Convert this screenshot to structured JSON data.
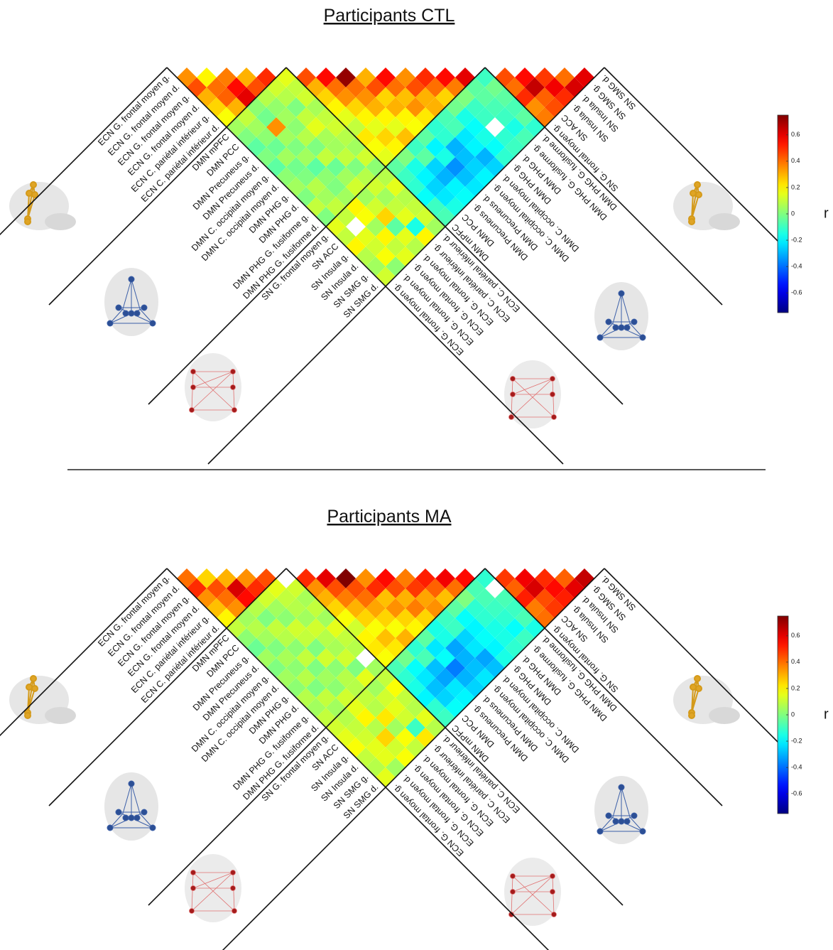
{
  "chart_data": [
    {
      "type": "heatmap",
      "title": "Participants CTL",
      "labels": [
        "ECN G. frontal moyen g.",
        "ECN G. frontal moyen d.",
        "ECN G. frontal moyen g.",
        "ECN G. frontal moyen d.",
        "ECN C. pariétal inférieur g.",
        "ECN C. pariétal inférieur d.",
        "DMN mPFC",
        "DMN PCC",
        "DMN Precuneus g.",
        "DMN Precuneus d.",
        "DMN C. occipital moyen g.",
        "DMN C. occipital moyen d.",
        "DMN PHG g.",
        "DMN PHG d.",
        "DMN PHG G. fusiforme g.",
        "DMN PHG G. fusiforme d.",
        "SN G. frontal moyen g.",
        "SN ACC",
        "SN Insula g.",
        "SN Insula d.",
        "SN SMG g.",
        "SN SMG d."
      ],
      "values": [
        [
          0.35
        ],
        [
          0.45,
          0.2
        ],
        [
          0.3,
          0.4,
          0.38
        ],
        [
          0.25,
          0.42,
          0.55,
          0.3
        ],
        [
          0.18,
          0.3,
          0.6,
          0.45,
          0.5
        ],
        [
          0.05,
          0.1,
          0.02,
          0.08,
          0.12,
          0.15
        ],
        [
          0.0,
          0.05,
          -0.02,
          0.03,
          0.08,
          0.1,
          0.45
        ],
        [
          -0.05,
          0.02,
          0.35,
          0.05,
          0.0,
          0.12,
          0.3,
          0.55
        ],
        [
          0.0,
          -0.03,
          0.05,
          0.02,
          0.1,
          0.06,
          0.25,
          0.4,
          0.72
        ],
        [
          -0.05,
          0.05,
          0.0,
          0.08,
          0.15,
          0.1,
          0.2,
          0.35,
          0.4,
          0.3
        ],
        [
          0.02,
          -0.02,
          0.05,
          0.0,
          0.06,
          0.12,
          0.15,
          0.25,
          0.35,
          0.45,
          0.55
        ],
        [
          0.05,
          0.0,
          -0.05,
          0.1,
          0.05,
          0.08,
          0.1,
          0.2,
          0.3,
          0.25,
          0.4,
          0.35
        ],
        [
          0.0,
          0.08,
          0.02,
          -0.03,
          0.1,
          0.05,
          0.22,
          0.15,
          0.2,
          0.3,
          0.28,
          0.45,
          0.5
        ],
        [
          0.1,
          0.05,
          0.0,
          0.05,
          0.0,
          0.12,
          0.18,
          0.25,
          0.15,
          0.2,
          0.35,
          0.3,
          0.4,
          0.55
        ],
        [
          0.0,
          0.1,
          0.05,
          0.12,
          0.08,
          0.02,
          0.15,
          0.2,
          0.28,
          0.18,
          0.22,
          0.3,
          0.25,
          0.38,
          0.6
        ],
        [
          0.15,
          0.1,
          0.2,
          0.05,
          0.12,
          0.08,
          -0.05,
          0.0,
          -0.1,
          -0.05,
          -0.12,
          -0.08,
          -0.02,
          0.0,
          -0.05,
          -0.1
        ],
        [
          0.1,
          null,
          0.18,
          0.12,
          0.05,
          0.15,
          -0.1,
          -0.15,
          -0.05,
          -0.2,
          -0.12,
          -0.08,
          -0.15,
          -0.1,
          -0.05,
          -0.02,
          0.45
        ],
        [
          0.2,
          0.15,
          0.05,
          0.25,
          0.1,
          0.08,
          -0.12,
          -0.2,
          -0.25,
          -0.15,
          -0.3,
          -0.22,
          -0.18,
          -0.1,
          -0.08,
          -0.05,
          0.4,
          0.55
        ],
        [
          0.08,
          0.12,
          0.2,
          -0.05,
          0.15,
          0.1,
          -0.18,
          -0.25,
          -0.3,
          -0.35,
          -0.28,
          -0.2,
          -0.15,
          null,
          -0.1,
          -0.08,
          0.5,
          0.65,
          0.48
        ],
        [
          0.05,
          0.18,
          0.1,
          0.15,
          -0.15,
          0.12,
          -0.1,
          -0.22,
          -0.2,
          -0.28,
          -0.25,
          -0.3,
          -0.18,
          -0.12,
          -0.15,
          -0.05,
          0.35,
          0.42,
          0.58,
          0.4
        ],
        [
          0.12,
          0.02,
          0.15,
          0.08,
          0.2,
          0.05,
          -0.08,
          -0.15,
          -0.18,
          -0.22,
          -0.2,
          -0.25,
          -0.12,
          -0.1,
          -0.08,
          -0.12,
          0.38,
          0.45,
          0.5,
          0.62,
          0.6
        ]
      ],
      "colorbar": {
        "lim": [
          -0.75,
          0.75
        ],
        "ticks": [
          0.6,
          0.4,
          0.2,
          0,
          -0.2,
          -0.4,
          -0.6
        ],
        "label": "r"
      }
    },
    {
      "type": "heatmap",
      "title": "Participants MA",
      "labels": [
        "ECN G. frontal moyen g.",
        "ECN G. frontal moyen d.",
        "ECN G. frontal moyen g.",
        "ECN G. frontal moyen d.",
        "ECN C. pariétal inférieur g.",
        "ECN C. pariétal inférieur d.",
        "DMN mPFC",
        "DMN PCC",
        "DMN Precuneus g.",
        "DMN Precuneus d.",
        "DMN C. occipital moyen g.",
        "DMN C. occipital moyen d.",
        "DMN PHG g.",
        "DMN PHG d.",
        "DMN PHG G. fusiforme g.",
        "DMN PHG G. fusiforme d.",
        "SN G. frontal moyen g.",
        "SN ACC",
        "SN Insula g.",
        "SN Insula d.",
        "SN SMG g.",
        "SN SMG d."
      ],
      "values": [
        [
          0.4
        ],
        [
          0.5,
          0.25
        ],
        [
          0.35,
          0.45,
          0.3
        ],
        [
          0.28,
          0.4,
          0.62,
          0.35
        ],
        [
          0.2,
          0.35,
          0.55,
          0.5,
          0.45
        ],
        [
          0.1,
          0.05,
          0.08,
          0.12,
          0.15,
          null
        ],
        [
          0.02,
          0.08,
          0.0,
          0.05,
          0.1,
          0.12,
          0.5
        ],
        [
          -0.03,
          0.05,
          0.1,
          0.02,
          0.08,
          0.06,
          0.35,
          0.6
        ],
        [
          0.05,
          0.0,
          0.08,
          0.12,
          0.05,
          0.1,
          0.3,
          0.45,
          0.75
        ],
        [
          0.0,
          0.06,
          0.02,
          0.1,
          0.12,
          0.05,
          0.25,
          0.38,
          0.45,
          0.35
        ],
        [
          0.05,
          0.02,
          0.1,
          0.0,
          0.08,
          0.15,
          0.18,
          0.3,
          0.4,
          0.5,
          0.55
        ],
        [
          0.02,
          0.08,
          0.0,
          0.12,
          0.06,
          0.1,
          0.12,
          0.25,
          0.32,
          0.28,
          0.45,
          0.38
        ],
        [
          0.08,
          0.0,
          0.05,
          0.02,
          0.12,
          0.08,
          0.2,
          0.18,
          0.25,
          0.35,
          0.3,
          0.48,
          0.52
        ],
        [
          0.05,
          0.1,
          0.02,
          0.08,
          0.0,
          null,
          0.22,
          0.28,
          0.18,
          0.25,
          0.38,
          0.32,
          0.42,
          0.58
        ],
        [
          0.1,
          0.05,
          0.12,
          0.08,
          0.15,
          0.05,
          0.18,
          0.22,
          0.3,
          0.2,
          0.25,
          0.35,
          0.28,
          0.4,
          0.55
        ],
        [
          0.12,
          0.08,
          0.15,
          0.1,
          0.05,
          0.1,
          -0.08,
          -0.02,
          -0.12,
          -0.05,
          -0.15,
          -0.1,
          -0.05,
          0.0,
          -0.08,
          -0.12
        ],
        [
          0.15,
          0.1,
          0.2,
          0.08,
          0.12,
          0.18,
          -0.12,
          -0.18,
          -0.08,
          -0.22,
          -0.15,
          -0.1,
          -0.18,
          -0.12,
          -0.08,
          null,
          0.48
        ],
        [
          0.18,
          0.12,
          0.08,
          0.22,
          0.15,
          0.1,
          -0.15,
          -0.22,
          -0.28,
          -0.18,
          -0.32,
          -0.25,
          -0.2,
          -0.12,
          -0.1,
          -0.08,
          0.42,
          0.58
        ],
        [
          0.1,
          0.15,
          0.25,
          0.05,
          0.12,
          0.08,
          -0.2,
          -0.28,
          -0.32,
          -0.38,
          -0.3,
          -0.22,
          -0.18,
          -0.15,
          -0.12,
          -0.1,
          0.52,
          0.62,
          0.5
        ],
        [
          0.08,
          0.15,
          0.12,
          0.18,
          -0.1,
          0.15,
          -0.12,
          -0.25,
          -0.22,
          -0.3,
          -0.28,
          -0.32,
          -0.2,
          -0.15,
          -0.18,
          -0.08,
          0.38,
          0.45,
          0.55,
          0.42
        ],
        [
          0.15,
          0.05,
          0.18,
          0.1,
          0.22,
          0.08,
          -0.1,
          -0.18,
          -0.2,
          -0.25,
          -0.22,
          -0.28,
          -0.15,
          -0.12,
          -0.1,
          -0.15,
          0.4,
          0.48,
          0.52,
          0.6,
          0.65
        ]
      ],
      "colorbar": {
        "lim": [
          -0.75,
          0.75
        ],
        "ticks": [
          0.6,
          0.4,
          0.2,
          0,
          -0.2,
          -0.4,
          -0.6
        ],
        "label": "r"
      }
    }
  ]
}
